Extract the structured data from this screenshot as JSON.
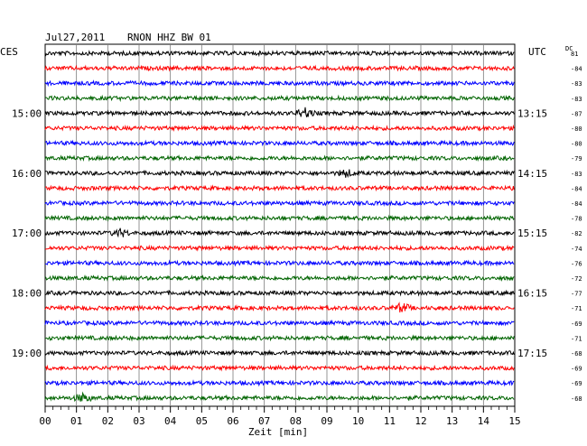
{
  "header": {
    "date": "Jul27,2011",
    "station": "RNON HHZ BW 01",
    "left_tz": "CES",
    "right_tz": "UTC",
    "dc_label": "DC"
  },
  "chart_data": {
    "type": "line",
    "title": "Jul27,2011   RNON HHZ BW 01",
    "xlabel": "Zeit [min]",
    "ylabel": "",
    "xlim": [
      0,
      15
    ],
    "x_ticks": [
      "00",
      "01",
      "02",
      "03",
      "04",
      "05",
      "06",
      "07",
      "08",
      "09",
      "10",
      "11",
      "12",
      "13",
      "14",
      "15"
    ],
    "x_minor_step": 0.25,
    "grid": true,
    "trace_colors": [
      "#000000",
      "#ff0000",
      "#0000ff",
      "#006400"
    ],
    "left_hour_labels": [
      {
        "trace": 4,
        "label": "15:00"
      },
      {
        "trace": 8,
        "label": "16:00"
      },
      {
        "trace": 12,
        "label": "17:00"
      },
      {
        "trace": 16,
        "label": "18:00"
      },
      {
        "trace": 20,
        "label": "19:00"
      }
    ],
    "right_time_labels": [
      {
        "trace": 4,
        "label": "13:15"
      },
      {
        "trace": 8,
        "label": "14:15"
      },
      {
        "trace": 12,
        "label": "15:15"
      },
      {
        "trace": 16,
        "label": "16:15"
      },
      {
        "trace": 20,
        "label": "17:15"
      }
    ],
    "dc_offsets": [
      "81",
      "-84",
      "-83",
      "-83",
      "-87",
      "-80",
      "-80",
      "-79",
      "-83",
      "-84",
      "-84",
      "-78",
      "-82",
      "-74",
      "-76",
      "-72",
      "-77",
      "-71",
      "-69",
      "-71",
      "-68",
      "-69",
      "-69",
      "-68"
    ],
    "events": [
      {
        "trace": 4,
        "minute": 8.3,
        "amplitude": 2.2
      },
      {
        "trace": 8,
        "minute": 9.6,
        "amplitude": 1.5
      },
      {
        "trace": 12,
        "minute": 2.4,
        "amplitude": 1.6
      },
      {
        "trace": 17,
        "minute": 11.4,
        "amplitude": 2.0
      },
      {
        "trace": 23,
        "minute": 1.2,
        "amplitude": 1.8
      }
    ]
  }
}
